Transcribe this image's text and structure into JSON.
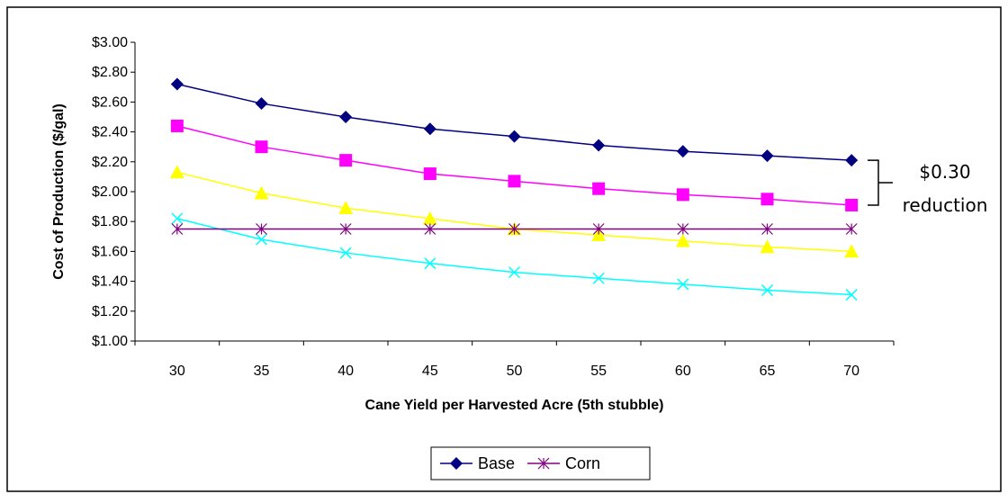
{
  "chart_data": {
    "type": "line",
    "xlabel": "Cane Yield per Harvested Acre (5th stubble)",
    "ylabel": "Cost of Production ($/gal)",
    "categories": [
      "30",
      "35",
      "40",
      "45",
      "50",
      "55",
      "60",
      "65",
      "70"
    ],
    "ylim": [
      1.0,
      3.0
    ],
    "yticks": [
      1.0,
      1.2,
      1.4,
      1.6,
      1.8,
      2.0,
      2.2,
      2.4,
      2.6,
      2.8,
      3.0
    ],
    "ytick_labels": [
      "$1.00",
      "$1.20",
      "$1.40",
      "$1.60",
      "$1.80",
      "$2.00",
      "$2.20",
      "$2.40",
      "$2.60",
      "$2.80",
      "$3.00"
    ],
    "grid": false,
    "legend_position": "bottom",
    "series": [
      {
        "name": "Base",
        "color": "#000080",
        "marker": "diamond",
        "in_legend": true,
        "values": [
          2.72,
          2.59,
          2.5,
          2.42,
          2.37,
          2.31,
          2.27,
          2.24,
          2.21
        ]
      },
      {
        "name": "",
        "color": "#ff00ff",
        "marker": "square",
        "in_legend": false,
        "values": [
          2.44,
          2.3,
          2.21,
          2.12,
          2.07,
          2.02,
          1.98,
          1.95,
          1.91
        ]
      },
      {
        "name": "",
        "color": "#ffff00",
        "marker": "triangle",
        "in_legend": false,
        "values": [
          2.13,
          1.99,
          1.89,
          1.82,
          1.75,
          1.71,
          1.67,
          1.63,
          1.6
        ]
      },
      {
        "name": "",
        "color": "#00ffff",
        "marker": "x",
        "in_legend": false,
        "values": [
          1.82,
          1.68,
          1.59,
          1.52,
          1.46,
          1.42,
          1.38,
          1.34,
          1.31
        ]
      },
      {
        "name": "Corn",
        "color": "#800080",
        "marker": "star",
        "in_legend": true,
        "values": [
          1.75,
          1.75,
          1.75,
          1.75,
          1.75,
          1.75,
          1.75,
          1.75,
          1.75
        ]
      }
    ],
    "annotations": [
      {
        "line1": "$0.30",
        "line2": "reduction"
      }
    ]
  }
}
